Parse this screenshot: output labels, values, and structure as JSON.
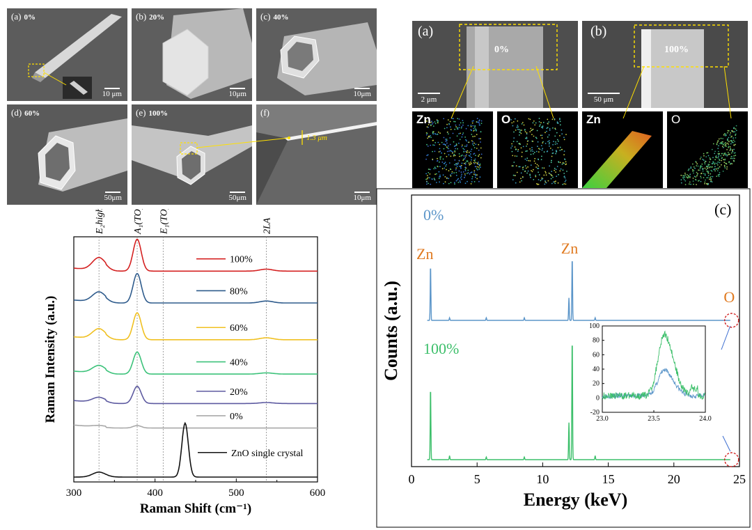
{
  "sem_panels": [
    {
      "label": "(a)",
      "pct": "0%",
      "scale": "10 μm"
    },
    {
      "label": "(b)",
      "pct": "20%",
      "scale": "10μm"
    },
    {
      "label": "(c)",
      "pct": "40%",
      "scale": "10μm"
    },
    {
      "label": "(d)",
      "pct": "60%",
      "scale": "50μm"
    },
    {
      "label": "(e)",
      "pct": "100%",
      "scale": "50μm"
    },
    {
      "label": "(f)",
      "pct": "",
      "scale": "10μm"
    }
  ],
  "thickness_annotation": "1.3 μm",
  "eds_top": {
    "a": {
      "label": "(a)",
      "pct": "0%",
      "scale": "2 μm",
      "el1": "Zn",
      "el2": "O"
    },
    "b": {
      "label": "(b)",
      "pct": "100%",
      "scale": "50 μm",
      "el1": "Zn",
      "el2": "O"
    }
  },
  "colors": {
    "p100": "#d42020",
    "p80": "#2e5b8c",
    "p60": "#f0c020",
    "p40": "#3cc27a",
    "p20": "#5d5aa0",
    "p0": "#a8a8a8",
    "crystal": "#111111",
    "eds0": "#5b95c9",
    "eds100": "#3cbf6a",
    "zn_label": "#e07a20"
  },
  "chart_data": [
    {
      "type": "line",
      "xlabel": "Raman Shift (cm⁻¹)",
      "ylabel": "Raman Intensity (a.u.)",
      "xlim": [
        300,
        600
      ],
      "xticks": [
        300,
        400,
        500,
        600
      ],
      "peak_labels": [
        "E₂high − E₂low",
        "A₁(TO)",
        "E₁(TO)",
        "2LA"
      ],
      "peak_positions": [
        331,
        378,
        410,
        537
      ],
      "series": [
        {
          "name": "100%",
          "offset": 0.86,
          "peaks": [
            [
              331,
              0.05
            ],
            [
              378,
              0.13
            ],
            [
              537,
              0.008
            ]
          ]
        },
        {
          "name": "80%",
          "offset": 0.73,
          "peaks": [
            [
              331,
              0.04
            ],
            [
              378,
              0.12
            ],
            [
              537,
              0.008
            ]
          ]
        },
        {
          "name": "60%",
          "offset": 0.58,
          "peaks": [
            [
              331,
              0.04
            ],
            [
              378,
              0.11
            ],
            [
              537,
              0.008
            ]
          ]
        },
        {
          "name": "40%",
          "offset": 0.44,
          "peaks": [
            [
              331,
              0.03
            ],
            [
              378,
              0.09
            ],
            [
              537,
              0.005
            ]
          ]
        },
        {
          "name": "20%",
          "offset": 0.32,
          "peaks": [
            [
              331,
              0.02
            ],
            [
              378,
              0.07
            ],
            [
              537,
              0.004
            ]
          ]
        },
        {
          "name": "0%",
          "offset": 0.22,
          "peaks": [
            [
              331,
              0.005
            ],
            [
              378,
              0.01
            ]
          ]
        },
        {
          "name": "ZnO single crystal",
          "offset": 0.02,
          "peaks": [
            [
              331,
              0.02
            ],
            [
              437,
              0.22
            ]
          ]
        }
      ]
    },
    {
      "type": "line",
      "label": "(c)",
      "xlabel": "Energy (keV)",
      "ylabel": "Counts (a.u.)",
      "xlim": [
        0,
        25
      ],
      "xticks": [
        0,
        5,
        10,
        15,
        20,
        25
      ],
      "peak_labels": [
        "Zn",
        "Zn",
        "O"
      ],
      "series": [
        {
          "name": "0%",
          "peaks": [
            [
              1.45,
              0.42
            ],
            [
              2.9,
              0.02
            ],
            [
              5.7,
              0.02
            ],
            [
              8.6,
              0.02
            ],
            [
              12.0,
              0.17
            ],
            [
              12.25,
              0.48
            ],
            [
              14.0,
              0.02
            ]
          ]
        },
        {
          "name": "100%",
          "peaks": [
            [
              1.45,
              0.55
            ],
            [
              2.9,
              0.03
            ],
            [
              5.7,
              0.02
            ],
            [
              8.6,
              0.02
            ],
            [
              12.0,
              0.28
            ],
            [
              12.25,
              0.93
            ],
            [
              14.0,
              0.03
            ]
          ]
        }
      ],
      "inset": {
        "xlim": [
          23.0,
          24.0
        ],
        "ylim": [
          -20,
          100
        ],
        "xticks": [
          23.0,
          23.5,
          24.0
        ],
        "yticks": [
          -20,
          0,
          20,
          40,
          60,
          80,
          100
        ],
        "peak_center": 23.6,
        "peak_0": 35,
        "peak_100": 85
      }
    }
  ]
}
